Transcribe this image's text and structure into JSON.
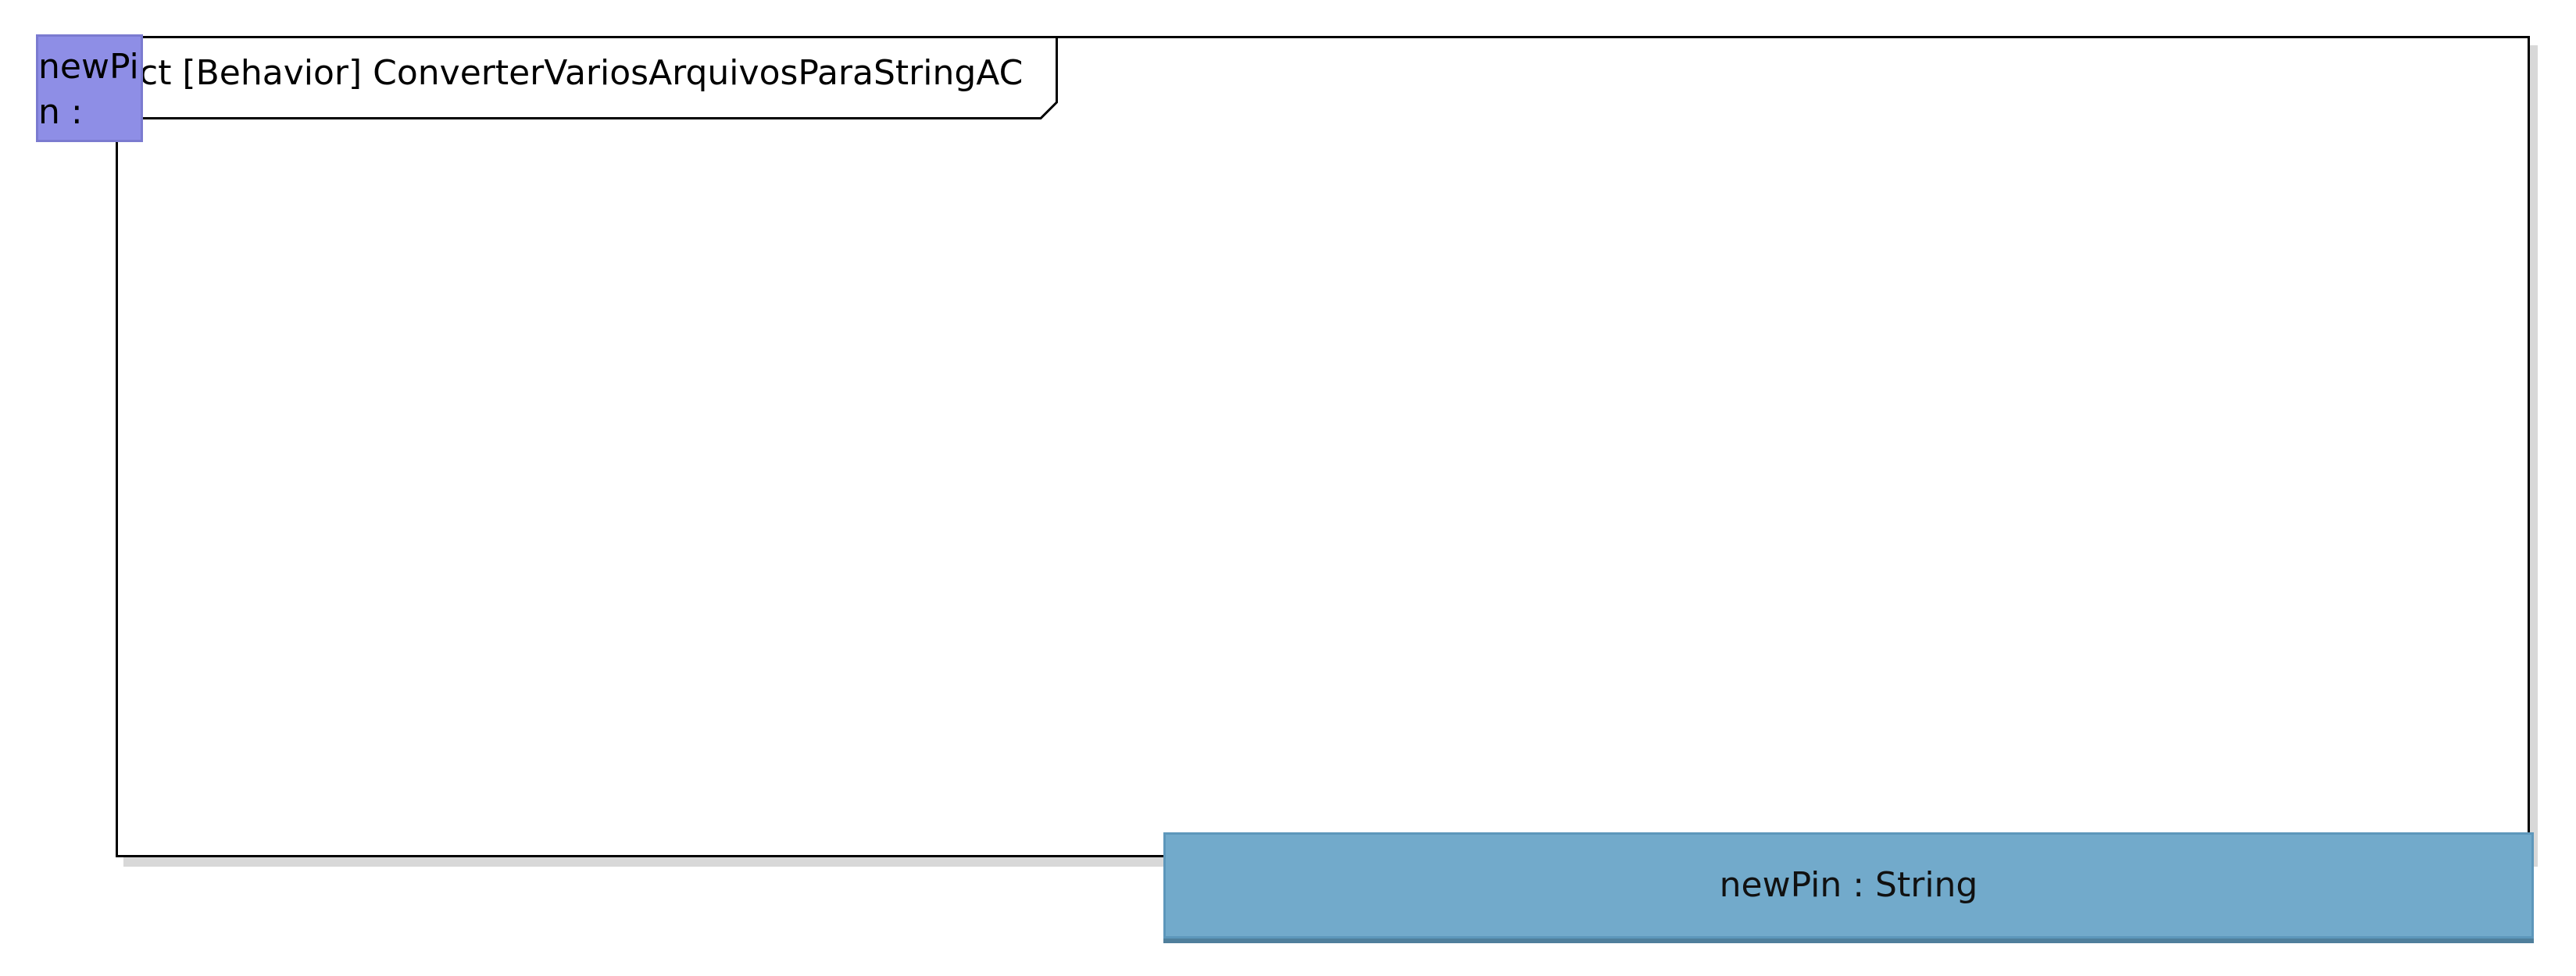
{
  "diagram": {
    "frame_title": "ct [Behavior] ConverterVariosArquivosParaStringAC",
    "pins": [
      {
        "label": "newPin : A..."
      },
      {
        "label": "newPin : String"
      }
    ],
    "colors": {
      "frame_border": "#000000",
      "small_pin_fill": "#8e8ee6",
      "large_pin_fill": "#72aacb"
    }
  }
}
